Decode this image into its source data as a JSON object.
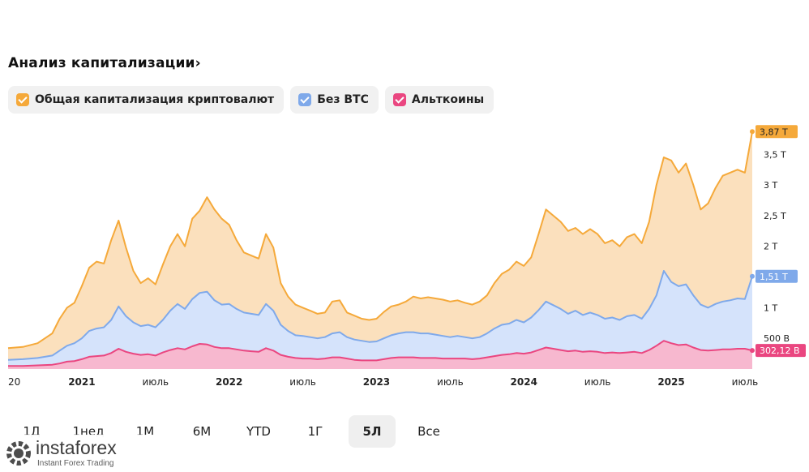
{
  "header": {
    "title": "Анализ капитализации›"
  },
  "legend": [
    {
      "label": "Общая капитализация криптовалют",
      "color": "#f5a93a"
    },
    {
      "label": "Без BTC",
      "color": "#7fa9ea"
    },
    {
      "label": "Альткоины",
      "color": "#ea4680"
    }
  ],
  "periods": [
    {
      "label": "1Д"
    },
    {
      "label": "1нед"
    },
    {
      "label": "1М"
    },
    {
      "label": "6М"
    },
    {
      "label": "YTD"
    },
    {
      "label": "1Г"
    },
    {
      "label": "5Л",
      "active": true
    },
    {
      "label": "Все"
    }
  ],
  "brand": {
    "name": "instaforex",
    "tagline": "Instant Forex Trading"
  },
  "chart_data": {
    "type": "area",
    "x_ticks": [
      {
        "t": 2020.5,
        "label": "20"
      },
      {
        "t": 2021.0,
        "label": "2021"
      },
      {
        "t": 2021.5,
        "label": "июль"
      },
      {
        "t": 2022.0,
        "label": "2022"
      },
      {
        "t": 2022.5,
        "label": "июль"
      },
      {
        "t": 2023.0,
        "label": "2023"
      },
      {
        "t": 2023.5,
        "label": "июль"
      },
      {
        "t": 2024.0,
        "label": "2024"
      },
      {
        "t": 2024.5,
        "label": "июль"
      },
      {
        "t": 2025.0,
        "label": "2025"
      },
      {
        "t": 2025.5,
        "label": "июль"
      }
    ],
    "y_ticks": [
      {
        "v": 0.5,
        "label": "500 B"
      },
      {
        "v": 1.0,
        "label": "1 T"
      },
      {
        "v": 1.5,
        "label": "1,5 T"
      },
      {
        "v": 2.0,
        "label": "2 T"
      },
      {
        "v": 2.5,
        "label": "2,5 T"
      },
      {
        "v": 3.0,
        "label": "3 T"
      },
      {
        "v": 3.5,
        "label": "3,5 T"
      }
    ],
    "ylim": [
      0,
      3.9
    ],
    "xlim": [
      2020.5,
      2025.55
    ],
    "last_labels": [
      {
        "series": 0,
        "label": "3,87 T"
      },
      {
        "series": 1,
        "label": "1,51 T"
      },
      {
        "series": 2,
        "label": "302,12 B"
      }
    ],
    "series": [
      {
        "name": "Общая капитализация криптовалют",
        "x": [
          2020.5,
          2020.6,
          2020.7,
          2020.8,
          2020.85,
          2020.9,
          2020.95,
          2021.0,
          2021.05,
          2021.1,
          2021.15,
          2021.2,
          2021.25,
          2021.3,
          2021.35,
          2021.4,
          2021.45,
          2021.5,
          2021.55,
          2021.6,
          2021.65,
          2021.7,
          2021.75,
          2021.8,
          2021.85,
          2021.9,
          2021.95,
          2022.0,
          2022.05,
          2022.1,
          2022.15,
          2022.2,
          2022.25,
          2022.3,
          2022.35,
          2022.4,
          2022.45,
          2022.5,
          2022.55,
          2022.6,
          2022.65,
          2022.7,
          2022.75,
          2022.8,
          2022.85,
          2022.9,
          2022.95,
          2023.0,
          2023.05,
          2023.1,
          2023.15,
          2023.2,
          2023.25,
          2023.3,
          2023.35,
          2023.4,
          2023.45,
          2023.5,
          2023.55,
          2023.6,
          2023.65,
          2023.7,
          2023.75,
          2023.8,
          2023.85,
          2023.9,
          2023.95,
          2024.0,
          2024.05,
          2024.1,
          2024.15,
          2024.2,
          2024.25,
          2024.3,
          2024.35,
          2024.4,
          2024.45,
          2024.5,
          2024.55,
          2024.6,
          2024.65,
          2024.7,
          2024.75,
          2024.8,
          2024.85,
          2024.9,
          2024.95,
          2025.0,
          2025.05,
          2025.1,
          2025.15,
          2025.2,
          2025.25,
          2025.3,
          2025.35,
          2025.4,
          2025.45,
          2025.5,
          2025.55
        ],
        "values": [
          0.34,
          0.36,
          0.42,
          0.58,
          0.82,
          1.0,
          1.08,
          1.35,
          1.65,
          1.75,
          1.72,
          2.1,
          2.42,
          1.98,
          1.6,
          1.4,
          1.48,
          1.38,
          1.7,
          2.0,
          2.2,
          2.0,
          2.45,
          2.58,
          2.8,
          2.6,
          2.45,
          2.35,
          2.1,
          1.9,
          1.85,
          1.8,
          2.2,
          1.98,
          1.4,
          1.18,
          1.05,
          1.0,
          0.95,
          0.9,
          0.92,
          1.1,
          1.12,
          0.92,
          0.87,
          0.82,
          0.8,
          0.82,
          0.93,
          1.02,
          1.05,
          1.1,
          1.18,
          1.15,
          1.17,
          1.15,
          1.13,
          1.1,
          1.12,
          1.08,
          1.05,
          1.1,
          1.2,
          1.4,
          1.55,
          1.62,
          1.75,
          1.68,
          1.82,
          2.2,
          2.6,
          2.5,
          2.4,
          2.25,
          2.3,
          2.2,
          2.28,
          2.2,
          2.05,
          2.1,
          2.0,
          2.15,
          2.2,
          2.05,
          2.4,
          3.0,
          3.45,
          3.4,
          3.2,
          3.35,
          3.0,
          2.6,
          2.7,
          2.95,
          3.15,
          3.2,
          3.25,
          3.2,
          3.87
        ]
      },
      {
        "name": "Без BTC",
        "x": [
          2020.5,
          2020.6,
          2020.7,
          2020.8,
          2020.85,
          2020.9,
          2020.95,
          2021.0,
          2021.05,
          2021.1,
          2021.15,
          2021.2,
          2021.25,
          2021.3,
          2021.35,
          2021.4,
          2021.45,
          2021.5,
          2021.55,
          2021.6,
          2021.65,
          2021.7,
          2021.75,
          2021.8,
          2021.85,
          2021.9,
          2021.95,
          2022.0,
          2022.05,
          2022.1,
          2022.15,
          2022.2,
          2022.25,
          2022.3,
          2022.35,
          2022.4,
          2022.45,
          2022.5,
          2022.55,
          2022.6,
          2022.65,
          2022.7,
          2022.75,
          2022.8,
          2022.85,
          2022.9,
          2022.95,
          2023.0,
          2023.05,
          2023.1,
          2023.15,
          2023.2,
          2023.25,
          2023.3,
          2023.35,
          2023.4,
          2023.45,
          2023.5,
          2023.55,
          2023.6,
          2023.65,
          2023.7,
          2023.75,
          2023.8,
          2023.85,
          2023.9,
          2023.95,
          2024.0,
          2024.05,
          2024.1,
          2024.15,
          2024.2,
          2024.25,
          2024.3,
          2024.35,
          2024.4,
          2024.45,
          2024.5,
          2024.55,
          2024.6,
          2024.65,
          2024.7,
          2024.75,
          2024.8,
          2024.85,
          2024.9,
          2024.95,
          2025.0,
          2025.05,
          2025.1,
          2025.15,
          2025.2,
          2025.25,
          2025.3,
          2025.35,
          2025.4,
          2025.45,
          2025.5,
          2025.55
        ],
        "values": [
          0.15,
          0.16,
          0.18,
          0.22,
          0.3,
          0.38,
          0.42,
          0.5,
          0.62,
          0.66,
          0.68,
          0.8,
          1.02,
          0.86,
          0.76,
          0.7,
          0.72,
          0.68,
          0.8,
          0.95,
          1.06,
          0.98,
          1.14,
          1.24,
          1.26,
          1.12,
          1.05,
          1.06,
          0.98,
          0.92,
          0.9,
          0.88,
          1.06,
          0.95,
          0.72,
          0.62,
          0.55,
          0.54,
          0.52,
          0.5,
          0.52,
          0.58,
          0.6,
          0.52,
          0.48,
          0.46,
          0.44,
          0.45,
          0.5,
          0.55,
          0.58,
          0.6,
          0.6,
          0.58,
          0.58,
          0.56,
          0.54,
          0.52,
          0.54,
          0.52,
          0.5,
          0.52,
          0.58,
          0.66,
          0.72,
          0.74,
          0.8,
          0.76,
          0.84,
          0.96,
          1.1,
          1.04,
          0.98,
          0.9,
          0.95,
          0.88,
          0.92,
          0.88,
          0.82,
          0.84,
          0.8,
          0.86,
          0.88,
          0.82,
          0.98,
          1.2,
          1.6,
          1.42,
          1.35,
          1.38,
          1.2,
          1.05,
          1.0,
          1.06,
          1.1,
          1.12,
          1.15,
          1.14,
          1.51
        ]
      },
      {
        "name": "Альткоины",
        "x": [
          2020.5,
          2020.6,
          2020.7,
          2020.8,
          2020.85,
          2020.9,
          2020.95,
          2021.0,
          2021.05,
          2021.1,
          2021.15,
          2021.2,
          2021.25,
          2021.3,
          2021.35,
          2021.4,
          2021.45,
          2021.5,
          2021.55,
          2021.6,
          2021.65,
          2021.7,
          2021.75,
          2021.8,
          2021.85,
          2021.9,
          2021.95,
          2022.0,
          2022.05,
          2022.1,
          2022.15,
          2022.2,
          2022.25,
          2022.3,
          2022.35,
          2022.4,
          2022.45,
          2022.5,
          2022.55,
          2022.6,
          2022.65,
          2022.7,
          2022.75,
          2022.8,
          2022.85,
          2022.9,
          2022.95,
          2023.0,
          2023.05,
          2023.1,
          2023.15,
          2023.2,
          2023.25,
          2023.3,
          2023.35,
          2023.4,
          2023.45,
          2023.5,
          2023.55,
          2023.6,
          2023.65,
          2023.7,
          2023.75,
          2023.8,
          2023.85,
          2023.9,
          2023.95,
          2024.0,
          2024.05,
          2024.1,
          2024.15,
          2024.2,
          2024.25,
          2024.3,
          2024.35,
          2024.4,
          2024.45,
          2024.5,
          2024.55,
          2024.6,
          2024.65,
          2024.7,
          2024.75,
          2024.8,
          2024.85,
          2024.9,
          2024.95,
          2025.0,
          2025.05,
          2025.1,
          2025.15,
          2025.2,
          2025.25,
          2025.3,
          2025.35,
          2025.4,
          2025.45,
          2025.5,
          2025.55
        ],
        "values": [
          0.05,
          0.05,
          0.06,
          0.07,
          0.09,
          0.12,
          0.13,
          0.16,
          0.2,
          0.21,
          0.22,
          0.26,
          0.33,
          0.28,
          0.25,
          0.23,
          0.24,
          0.22,
          0.27,
          0.31,
          0.34,
          0.32,
          0.37,
          0.41,
          0.4,
          0.36,
          0.34,
          0.34,
          0.32,
          0.3,
          0.29,
          0.28,
          0.34,
          0.3,
          0.23,
          0.2,
          0.18,
          0.17,
          0.17,
          0.16,
          0.17,
          0.19,
          0.19,
          0.17,
          0.15,
          0.14,
          0.14,
          0.14,
          0.16,
          0.18,
          0.19,
          0.19,
          0.19,
          0.18,
          0.18,
          0.18,
          0.17,
          0.17,
          0.17,
          0.17,
          0.16,
          0.17,
          0.19,
          0.21,
          0.23,
          0.24,
          0.26,
          0.25,
          0.27,
          0.31,
          0.35,
          0.33,
          0.31,
          0.29,
          0.3,
          0.28,
          0.29,
          0.28,
          0.26,
          0.27,
          0.26,
          0.27,
          0.28,
          0.26,
          0.31,
          0.38,
          0.46,
          0.42,
          0.39,
          0.4,
          0.35,
          0.31,
          0.3,
          0.31,
          0.32,
          0.32,
          0.33,
          0.33,
          0.30212
        ]
      }
    ]
  }
}
